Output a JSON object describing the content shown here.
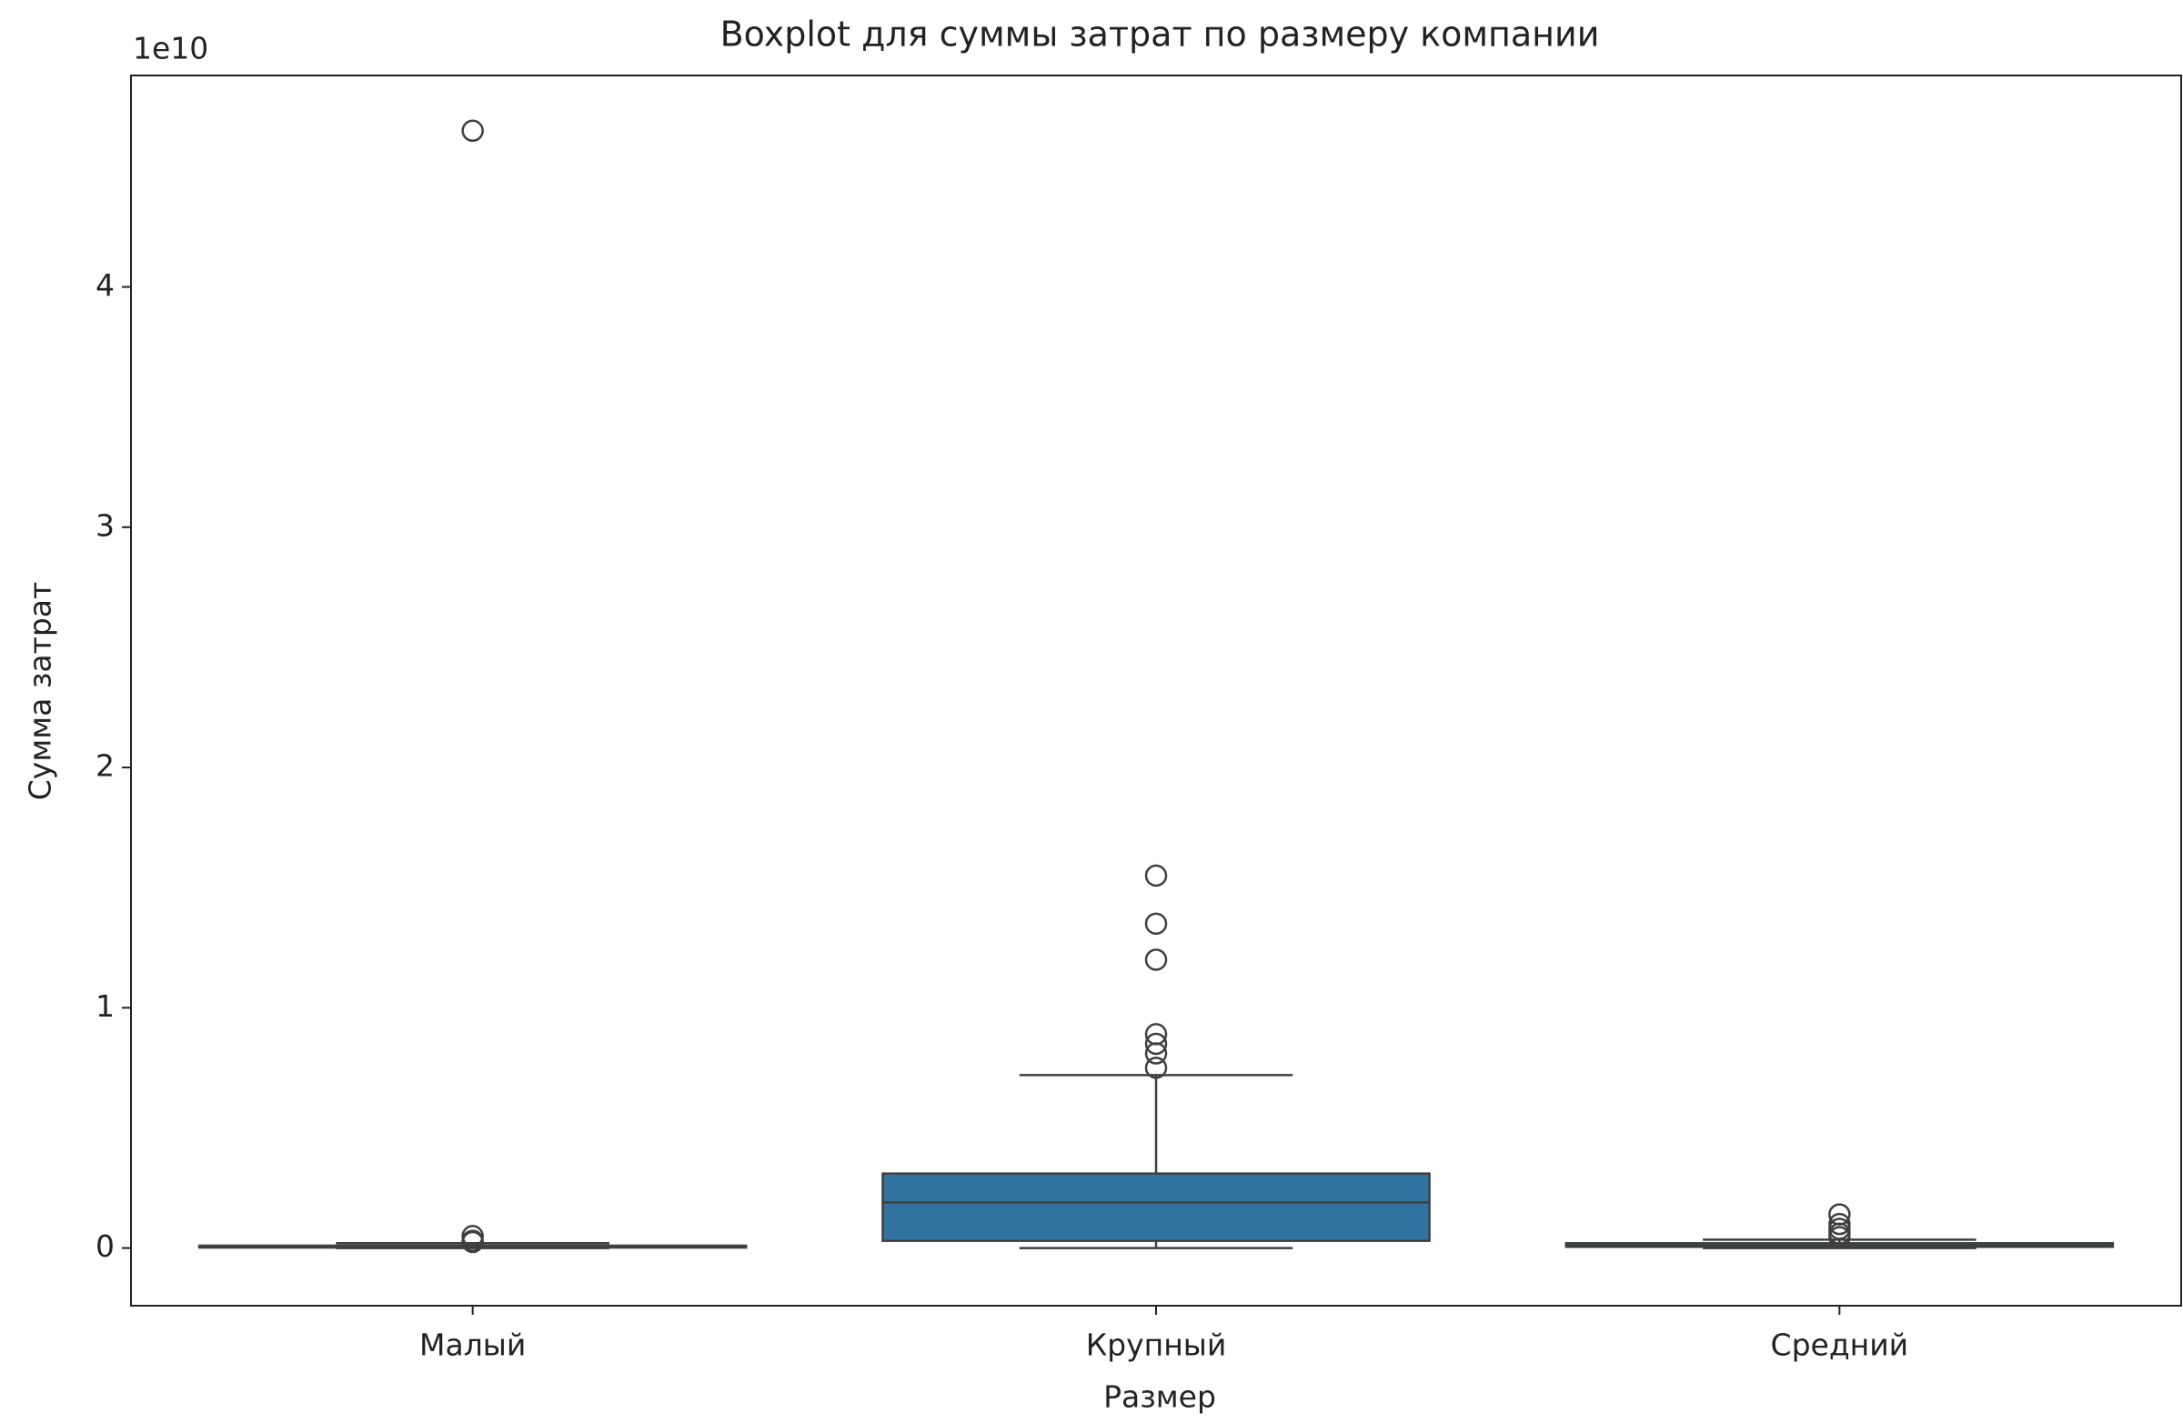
{
  "chart_data": {
    "type": "box",
    "title": "Boxplot для суммы затрат по размеру компании",
    "x_label": "Размер",
    "y_label": "Сумма затрат",
    "y_offset_label": "1e10",
    "categories": [
      "Малый",
      "Крупный",
      "Средний"
    ],
    "color": "#3274a1",
    "boxes": [
      {
        "whislo": 0,
        "q1": 0.002,
        "med": 0.005,
        "q3": 0.01,
        "whishi": 0.02,
        "fliers": [
          4.65,
          0.05,
          0.03,
          0.025
        ]
      },
      {
        "whislo": 0,
        "q1": 0.03,
        "med": 0.19,
        "q3": 0.31,
        "whishi": 0.72,
        "fliers": [
          1.55,
          1.35,
          1.2,
          0.89,
          0.85,
          0.81,
          0.75
        ]
      },
      {
        "whislo": 0,
        "q1": 0.005,
        "med": 0.01,
        "q3": 0.02,
        "whishi": 0.035,
        "fliers": [
          0.14,
          0.1,
          0.08,
          0.06,
          0.045
        ]
      }
    ],
    "ylim": [
      -0.24,
      4.88
    ],
    "yticks": [
      0,
      1,
      2,
      3,
      4
    ]
  }
}
